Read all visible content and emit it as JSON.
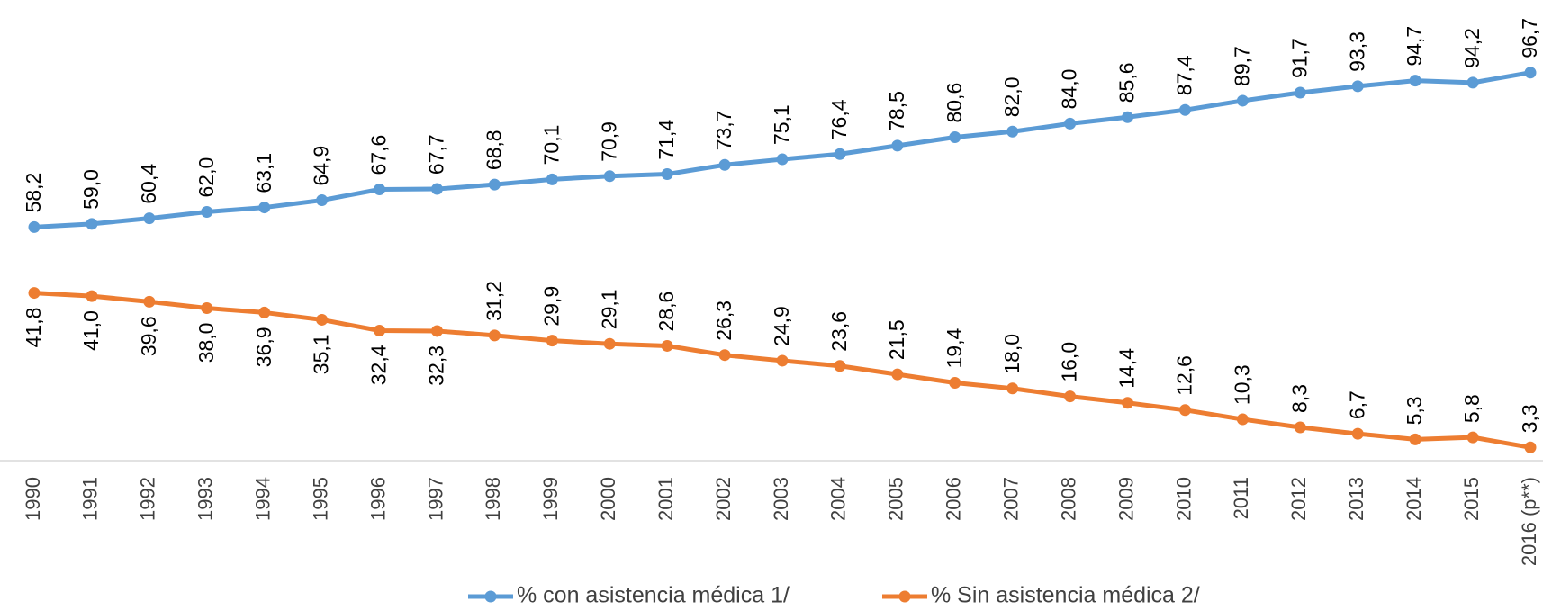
{
  "chart_data": {
    "type": "line",
    "categories": [
      "1990",
      "1991",
      "1992",
      "1993",
      "1994",
      "1995",
      "1996",
      "1997",
      "1998",
      "1999",
      "2000",
      "2001",
      "2002",
      "2003",
      "2004",
      "2005",
      "2006",
      "2007",
      "2008",
      "2009",
      "2010",
      "2011",
      "2012",
      "2013",
      "2014",
      "2015",
      "2016 (p**)"
    ],
    "ylim": [
      0,
      100
    ],
    "legend": "bottom",
    "series": [
      {
        "name": "% con asistencia médica 1/",
        "color": "#5b9bd5",
        "values": [
          58.2,
          59.0,
          60.4,
          62.0,
          63.1,
          64.9,
          67.6,
          67.7,
          68.8,
          70.1,
          70.9,
          71.4,
          73.7,
          75.1,
          76.4,
          78.5,
          80.6,
          82.0,
          84.0,
          85.6,
          87.4,
          89.7,
          91.7,
          93.3,
          94.7,
          94.2,
          96.7
        ],
        "value_labels": [
          "58,2",
          "59,0",
          "60,4",
          "62,0",
          "63,1",
          "64,9",
          "67,6",
          "67,7",
          "68,8",
          "70,1",
          "70,9",
          "71,4",
          "73,7",
          "75,1",
          "76,4",
          "78,5",
          "80,6",
          "82,0",
          "84,0",
          "85,6",
          "87,4",
          "89,7",
          "91,7",
          "93,3",
          "94,7",
          "94,2",
          "96,7"
        ]
      },
      {
        "name": "% Sin asistencia médica 2/",
        "color": "#ed7d31",
        "values": [
          41.8,
          41.0,
          39.6,
          38.0,
          36.9,
          35.1,
          32.4,
          32.3,
          31.2,
          29.9,
          29.1,
          28.6,
          26.3,
          24.9,
          23.6,
          21.5,
          19.4,
          18.0,
          16.0,
          14.4,
          12.6,
          10.3,
          8.3,
          6.7,
          5.3,
          5.8,
          3.3
        ],
        "value_labels": [
          "41,8",
          "41,0",
          "39,6",
          "38,0",
          "36,9",
          "35,1",
          "32,4",
          "32,3",
          "31,2",
          "29,9",
          "29,1",
          "28,6",
          "26,3",
          "24,9",
          "23,6",
          "21,5",
          "19,4",
          "18,0",
          "16,0",
          "14,4",
          "12,6",
          "10,3",
          "8,3",
          "6,7",
          "5,3",
          "5,8",
          "3,3"
        ]
      }
    ]
  }
}
